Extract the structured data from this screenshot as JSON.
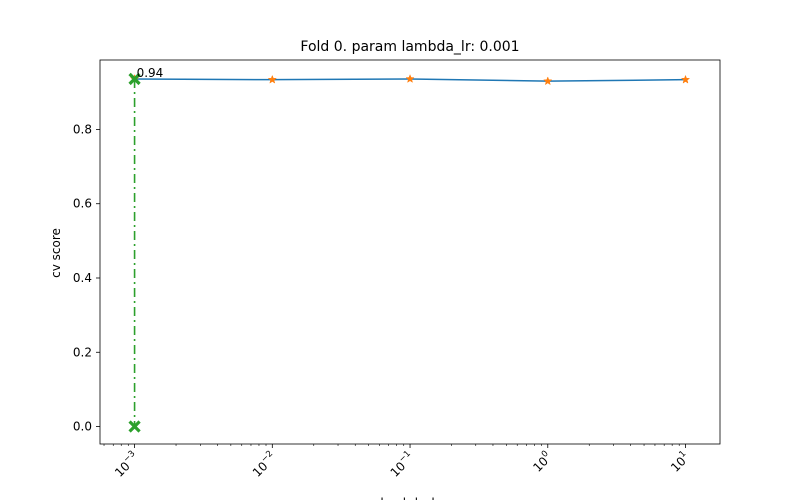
{
  "chart_data": {
    "type": "line",
    "title": "Fold 0. param lambda_lr: 0.001",
    "xlabel": "lambda_lr",
    "ylabel": "cv score",
    "xscale": "log",
    "xlim": [
      0.000561,
      17.8
    ],
    "ylim": [
      -0.047,
      0.987
    ],
    "grid": false,
    "x_ticks": [
      {
        "value": 0.001,
        "mantissa": "10",
        "exponent": "−3"
      },
      {
        "value": 0.01,
        "mantissa": "10",
        "exponent": "−2"
      },
      {
        "value": 0.1,
        "mantissa": "10",
        "exponent": "−1"
      },
      {
        "value": 1,
        "mantissa": "10",
        "exponent": "0"
      },
      {
        "value": 10,
        "mantissa": "10",
        "exponent": "1"
      }
    ],
    "y_ticks": [
      {
        "value": 0.0,
        "label": "0.0"
      },
      {
        "value": 0.2,
        "label": "0.2"
      },
      {
        "value": 0.4,
        "label": "0.4"
      },
      {
        "value": 0.6,
        "label": "0.6"
      },
      {
        "value": 0.8,
        "label": "0.8"
      }
    ],
    "series": [
      {
        "x": [
          0.001,
          0.01,
          0.1,
          1,
          10
        ],
        "y": [
          0.936,
          0.934,
          0.936,
          0.93,
          0.934
        ],
        "color": "#1f77b4",
        "marker": "star",
        "marker_color": "#ff7f0e"
      }
    ],
    "best": {
      "x": 0.001,
      "y": 0.936,
      "label": "0.94",
      "color": "#2ca02c",
      "line_style": "dash-dot",
      "marker": "x"
    }
  }
}
